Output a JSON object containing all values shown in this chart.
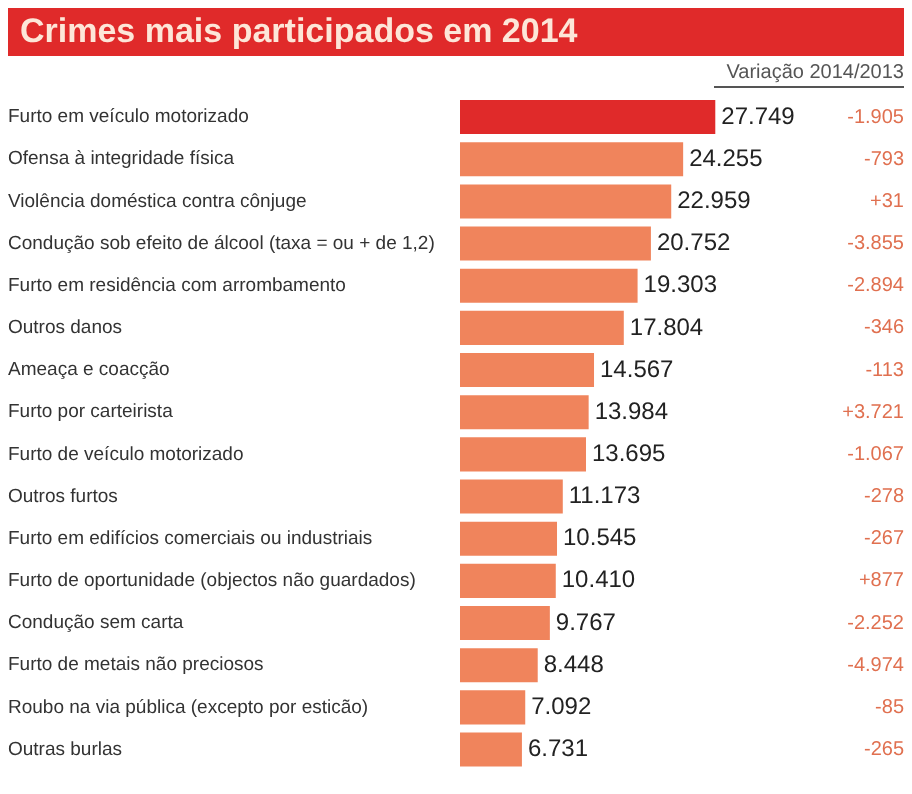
{
  "chart_data": {
    "type": "bar",
    "orientation": "horizontal",
    "title": "Crimes mais participados em 2014",
    "categories": [
      "Furto em veículo motorizado",
      "Ofensa à integridade física",
      "Violência doméstica contra cônjuge",
      "Condução sob efeito de álcool (taxa = ou + de 1,2)",
      "Furto em residência com arrombamento",
      "Outros danos",
      "Ameaça e coacção",
      "Furto por carteirista",
      "Furto de veículo motorizado",
      "Outros furtos",
      "Furto em edifícios comerciais ou industriais",
      "Furto de oportunidade (objectos não guardados)",
      "Condução sem carta",
      "Furto de metais não preciosos",
      "Roubo na via pública (excepto por esticão)",
      "Outras burlas"
    ],
    "values": [
      27749,
      24255,
      22959,
      20752,
      19303,
      17804,
      14567,
      13984,
      13695,
      11173,
      10545,
      10410,
      9767,
      8448,
      7092,
      6731
    ],
    "value_labels": [
      "27.749",
      "24.255",
      "22.959",
      "20.752",
      "19.303",
      "17.804",
      "14.567",
      "13.984",
      "13.695",
      "11.173",
      "10.545",
      "10.410",
      "9.767",
      "8.448",
      "7.092",
      "6.731"
    ],
    "colors": [
      "#e02a2a",
      "#f0845c",
      "#f0845c",
      "#f0845c",
      "#f0845c",
      "#f0845c",
      "#f0845c",
      "#f0845c",
      "#f0845c",
      "#f0845c",
      "#f0845c",
      "#f0845c",
      "#f0845c",
      "#f0845c",
      "#f0845c",
      "#f0845c"
    ],
    "tick_labels": "y",
    "grid": false,
    "legend": false,
    "annotations": [
      "Variação 2014/2013",
      "-1.905",
      "-793",
      "+31",
      "-3.855",
      "-2.894",
      "-346",
      "-113",
      "+3.721",
      "-1.067",
      "-278",
      "-267",
      "+877",
      "-2.252",
      "-4.974",
      "-85",
      "-265"
    ]
  }
}
